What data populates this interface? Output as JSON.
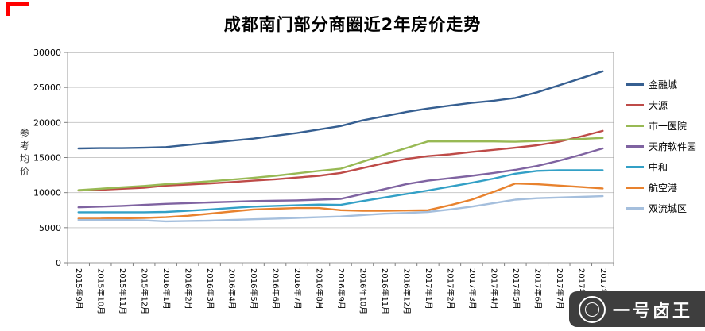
{
  "chart_data": {
    "type": "line",
    "title": "成都南门部分商圈近2年房价走势",
    "ylabel": "参考均价",
    "xlabel": "",
    "ylim": [
      0,
      30000
    ],
    "ytick_step": 5000,
    "grid": true,
    "legend_position": "right",
    "categories": [
      "2015年9月",
      "2015年10月",
      "2015年11月",
      "2015年12月",
      "2016年1月",
      "2016年2月",
      "2016年3月",
      "2016年4月",
      "2016年5月",
      "2016年6月",
      "2016年7月",
      "2016年8月",
      "2016年9月",
      "2016年10月",
      "2016年11月",
      "2016年12月",
      "2017年1月",
      "2017年2月",
      "2017年3月",
      "2017年4月",
      "2017年5月",
      "2017年6月",
      "2017年7月",
      "2017年8月",
      "2017年9月"
    ],
    "series": [
      {
        "name": "金融城",
        "color": "#365f91",
        "values": [
          16300,
          16350,
          16350,
          16400,
          16500,
          16800,
          17100,
          17400,
          17700,
          18100,
          18500,
          19000,
          19500,
          20300,
          20900,
          21500,
          22000,
          22400,
          22800,
          23100,
          23500,
          24300,
          25300,
          26300,
          27300
        ]
      },
      {
        "name": "大源",
        "color": "#be4b48",
        "values": [
          10300,
          10400,
          10550,
          10700,
          11000,
          11150,
          11300,
          11500,
          11700,
          11900,
          12150,
          12400,
          12800,
          13500,
          14200,
          14800,
          15200,
          15450,
          15800,
          16100,
          16400,
          16750,
          17250,
          18000,
          18800
        ]
      },
      {
        "name": "市一医院",
        "color": "#98b954",
        "values": [
          10350,
          10550,
          10750,
          10950,
          11200,
          11400,
          11600,
          11850,
          12100,
          12400,
          12750,
          13100,
          13400,
          14400,
          15400,
          16350,
          17300,
          17300,
          17300,
          17300,
          17250,
          17350,
          17500,
          17650,
          17800
        ]
      },
      {
        "name": "天府软件园",
        "color": "#7f63a1",
        "values": [
          7900,
          8000,
          8100,
          8250,
          8400,
          8500,
          8600,
          8700,
          8800,
          8850,
          8900,
          9000,
          9100,
          9800,
          10500,
          11200,
          11700,
          12050,
          12400,
          12800,
          13250,
          13800,
          14550,
          15400,
          16300
        ]
      },
      {
        "name": "中和",
        "color": "#33a0c6",
        "values": [
          7200,
          7200,
          7200,
          7200,
          7250,
          7400,
          7600,
          7800,
          8000,
          8100,
          8200,
          8300,
          8250,
          8800,
          9300,
          9800,
          10300,
          10850,
          11400,
          12000,
          12700,
          13100,
          13200,
          13200,
          13200
        ]
      },
      {
        "name": "航空港",
        "color": "#e8822e",
        "values": [
          6300,
          6300,
          6350,
          6400,
          6500,
          6700,
          7000,
          7300,
          7600,
          7700,
          7800,
          7800,
          7500,
          7400,
          7400,
          7450,
          7500,
          8200,
          9000,
          10100,
          11300,
          11200,
          11000,
          10800,
          10600
        ]
      },
      {
        "name": "双流城区",
        "color": "#a5bfdd",
        "values": [
          6100,
          6100,
          6100,
          6050,
          5900,
          5950,
          6000,
          6100,
          6200,
          6300,
          6400,
          6500,
          6600,
          6800,
          7000,
          7100,
          7250,
          7600,
          8000,
          8500,
          9000,
          9200,
          9300,
          9400,
          9500
        ]
      }
    ]
  },
  "watermark": {
    "text": "一号卤王",
    "logo_icon": "circle-seal-icon"
  }
}
